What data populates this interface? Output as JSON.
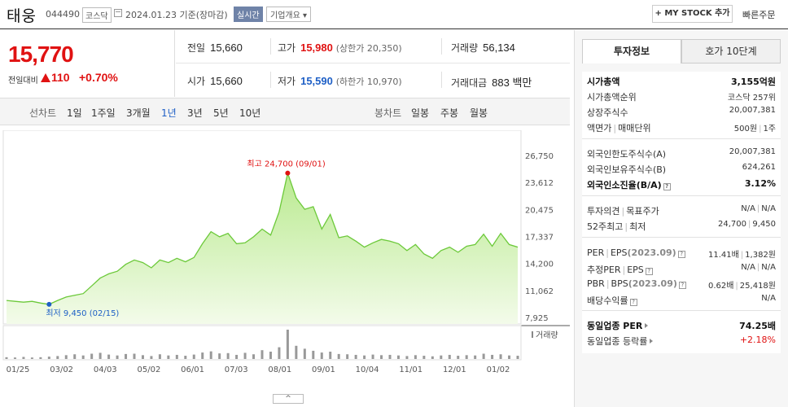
{
  "header": {
    "name": "태웅",
    "code": "044490",
    "market": "코스닥",
    "date": "2024.01.23",
    "basis": "기준(장마감)",
    "realtime": "실시간",
    "company_info": "기업개요 ▾",
    "mystock": "+ MY STOCK 추가",
    "quick_order": "빠른주문"
  },
  "price": {
    "current": "15,770",
    "diff_label": "전일대비",
    "diff_value": "110",
    "rate": "+0.70%"
  },
  "quote": {
    "prev_label": "전일",
    "prev": "15,660",
    "high_label": "고가",
    "high": "15,980",
    "upper": "(상한가 20,350)",
    "volume_label": "거래량",
    "volume": "56,134",
    "open_label": "시가",
    "open": "15,660",
    "low_label": "저가",
    "low": "15,590",
    "lower": "(하한가 10,970)",
    "amount_label": "거래대금",
    "amount": "883 백만"
  },
  "chart_tabs": {
    "line_label": "선차트",
    "periods": [
      "1일",
      "1주일",
      "3개월",
      "1년",
      "3년",
      "5년",
      "10년"
    ],
    "selected": "1년",
    "candle_label": "봉차트",
    "candles": [
      "일봉",
      "주봉",
      "월봉"
    ]
  },
  "chart_data": {
    "type": "area",
    "y_ticks": [
      "26,750",
      "23,612",
      "20,475",
      "17,337",
      "14,200",
      "11,062",
      "7,925"
    ],
    "ylim": [
      7925,
      26750
    ],
    "x_ticks": [
      "01/25",
      "03/02",
      "04/03",
      "05/02",
      "06/01",
      "07/03",
      "08/01",
      "09/01",
      "10/04",
      "11/01",
      "12/01",
      "01/02"
    ],
    "high_label": "최고 24,700 (09/01)",
    "low_label": "최저 9,450 (02/15)",
    "high_value": 24700,
    "low_value": 9450,
    "high_index": 33,
    "low_index": 5,
    "values": [
      9900,
      9800,
      9700,
      9800,
      9600,
      9450,
      9900,
      10300,
      10500,
      10700,
      11600,
      12500,
      13000,
      13300,
      14100,
      14600,
      14300,
      13700,
      14600,
      14300,
      14800,
      14400,
      14900,
      16500,
      17900,
      17300,
      17700,
      16500,
      16600,
      17300,
      18200,
      17500,
      20200,
      24700,
      21800,
      20500,
      20800,
      18200,
      19900,
      17200,
      17400,
      16800,
      16100,
      16600,
      17000,
      16800,
      16500,
      15700,
      16400,
      15300,
      14800,
      15700,
      16100,
      15500,
      16200,
      16400,
      17600,
      16200,
      17700,
      16400,
      16100
    ],
    "volume_label": "거래량",
    "volumes": [
      0.06,
      0.05,
      0.07,
      0.05,
      0.06,
      0.08,
      0.1,
      0.13,
      0.16,
      0.12,
      0.18,
      0.21,
      0.15,
      0.12,
      0.17,
      0.18,
      0.13,
      0.1,
      0.16,
      0.12,
      0.14,
      0.11,
      0.15,
      0.22,
      0.26,
      0.19,
      0.2,
      0.14,
      0.21,
      0.16,
      0.3,
      0.25,
      0.4,
      1.0,
      0.45,
      0.35,
      0.28,
      0.22,
      0.25,
      0.17,
      0.16,
      0.14,
      0.12,
      0.15,
      0.13,
      0.14,
      0.12,
      0.1,
      0.13,
      0.11,
      0.09,
      0.12,
      0.14,
      0.11,
      0.13,
      0.12,
      0.18,
      0.14,
      0.16,
      0.12,
      0.11
    ]
  },
  "right_panel": {
    "tab_invest": "투자정보",
    "tab_hoga": "호가 10단계",
    "market_cap_label": "시가총액",
    "market_cap": "3,155억원",
    "rank_label": "시가총액순위",
    "rank": "코스닥 257위",
    "shares_label": "상장주식수",
    "shares": "20,007,381",
    "par_label": "액면가",
    "unit_label": "매매단위",
    "par": "500원",
    "unit": "1주",
    "foreign_limit_label": "외국인한도주식수(A)",
    "foreign_limit": "20,007,381",
    "foreign_hold_label": "외국인보유주식수(B)",
    "foreign_hold": "624,261",
    "foreign_ratio_label": "외국인소진율(B/A)",
    "foreign_ratio": "3.12%",
    "opinion_label": "투자의견",
    "target_label": "목표주가",
    "opinion": "N/A",
    "target": "N/A",
    "w52_label": "52주최고",
    "w52_low_label": "최저",
    "w52_high": "24,700",
    "w52_low": "9,450",
    "per_label": "PER",
    "eps_label": "EPS",
    "eps_period": "(2023.09)",
    "per": "11.41배",
    "eps": "1,382원",
    "est_per_label": "추정PER",
    "est_eps_label": "EPS",
    "est_per": "N/A",
    "est_eps": "N/A",
    "pbr_label": "PBR",
    "bps_label": "BPS",
    "bps_period": "(2023.09)",
    "pbr": "0.62배",
    "bps": "25,418원",
    "div_label": "배당수익률",
    "div": "N/A",
    "sector_per_label": "동일업종 PER",
    "sector_per": "74.25배",
    "sector_rate_label": "동일업종 등락률",
    "sector_rate": "+2.18%"
  }
}
